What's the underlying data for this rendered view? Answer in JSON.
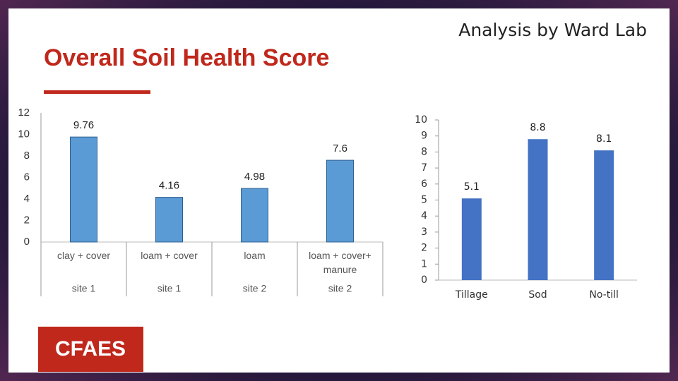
{
  "slide": {
    "title": "Overall Soil Health Score",
    "subtitle": "Analysis by Ward Lab",
    "logo": "CFAES"
  },
  "chart_data": [
    {
      "type": "bar",
      "categories": [
        "clay + cover",
        "loam + cover",
        "loam",
        "loam + cover+ manure"
      ],
      "category_groups": [
        "site 1",
        "site 1",
        "site 2",
        "site 2"
      ],
      "values": [
        9.76,
        4.16,
        4.98,
        7.6
      ],
      "color": "#5b9bd5",
      "ylim": [
        0,
        12
      ],
      "yticks": [
        0,
        2,
        4,
        6,
        8,
        10,
        12
      ],
      "grid": false
    },
    {
      "type": "bar",
      "categories": [
        "Tillage",
        "Sod",
        "No-till"
      ],
      "values": [
        5.1,
        8.8,
        8.1
      ],
      "color": "#4472c4",
      "ylim": [
        0,
        10
      ],
      "yticks": [
        0,
        1,
        2,
        3,
        4,
        5,
        6,
        7,
        8,
        9,
        10
      ],
      "grid": false
    }
  ]
}
